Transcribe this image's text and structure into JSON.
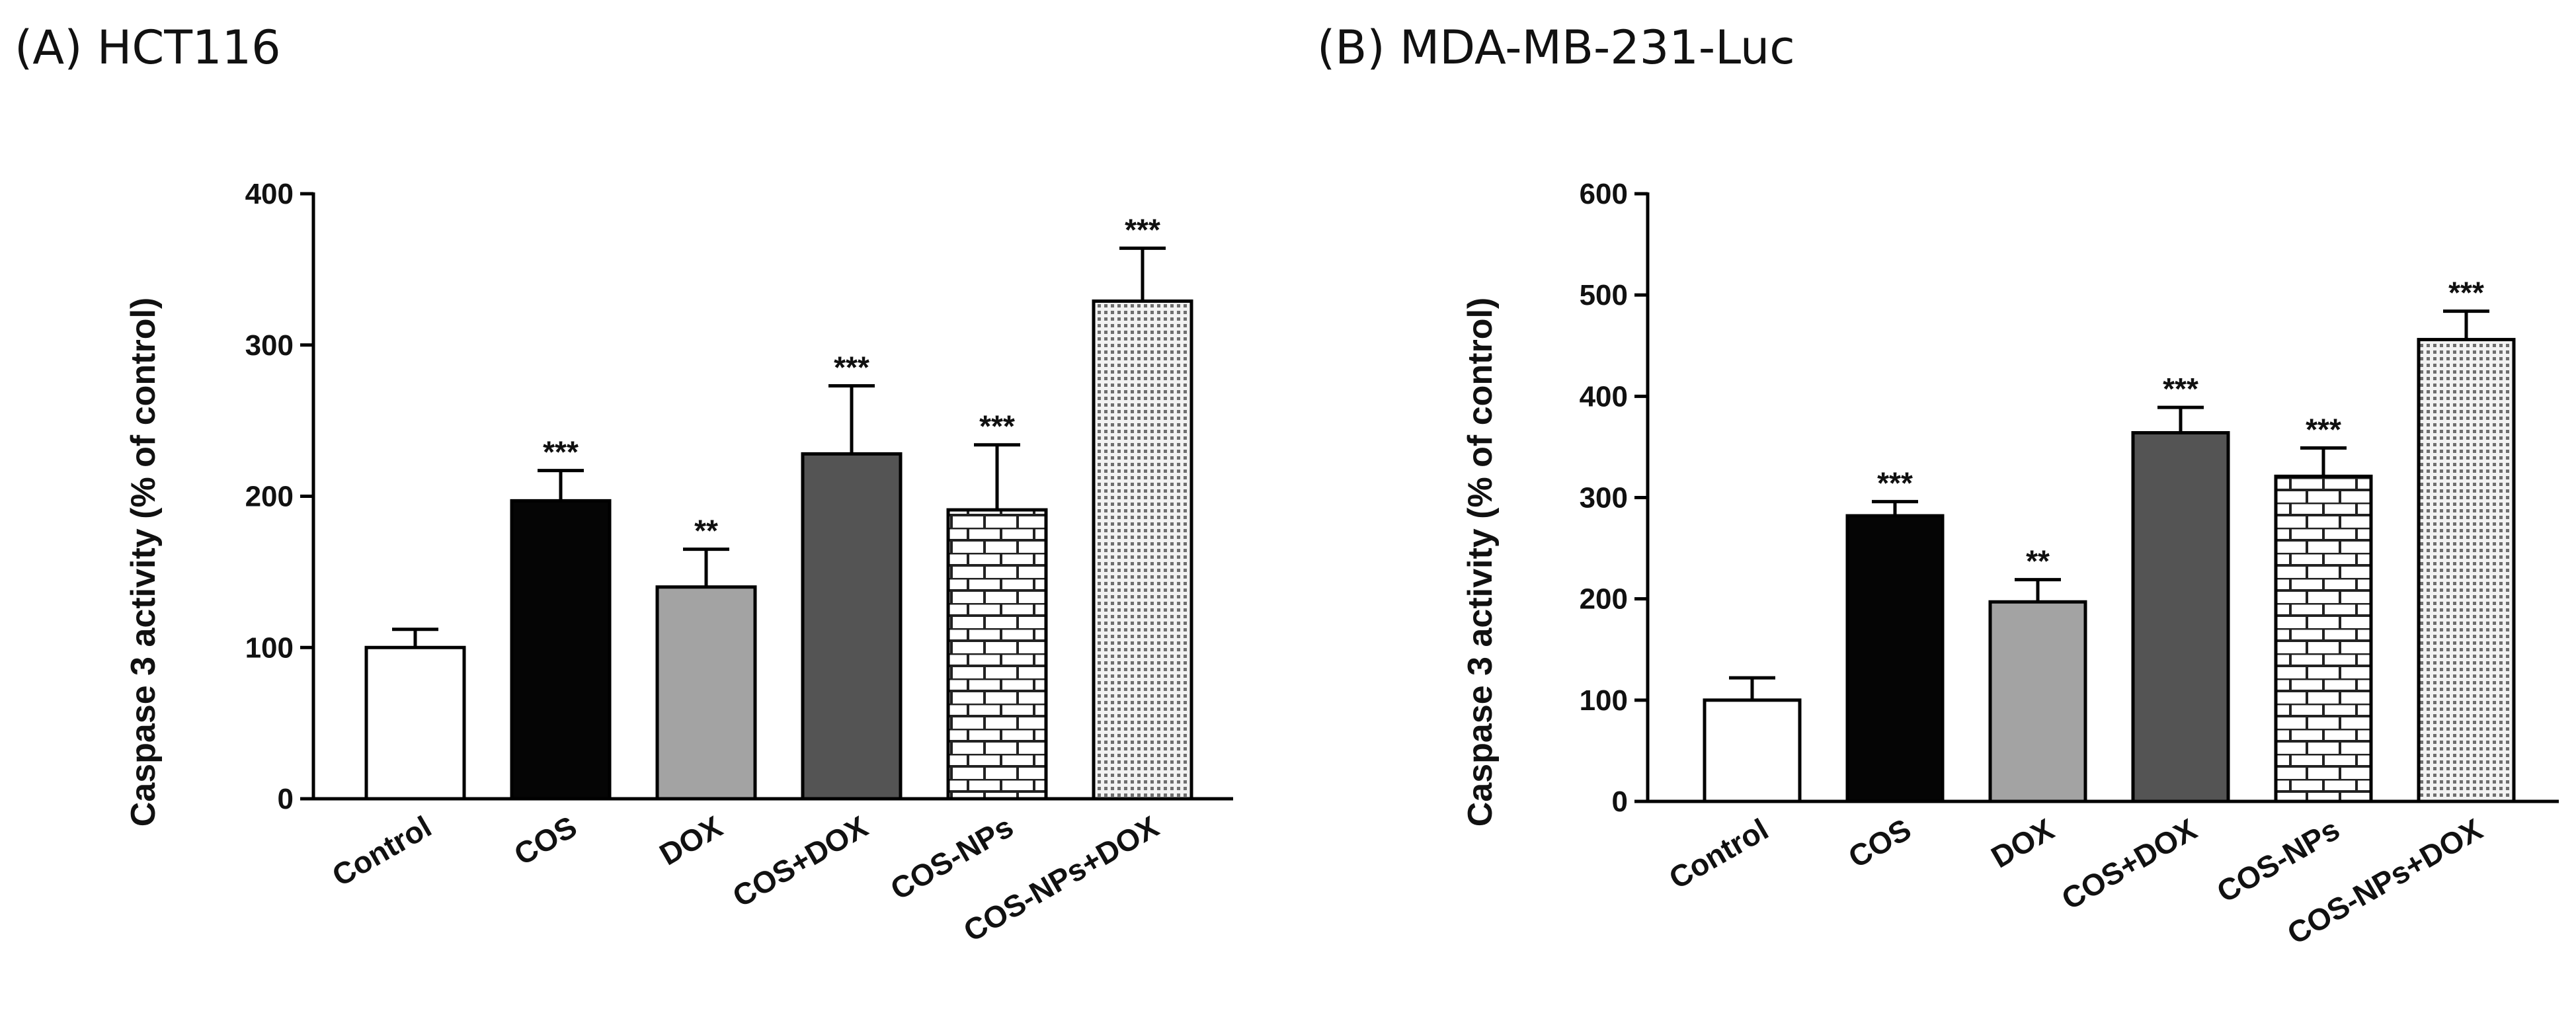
{
  "chart_data": [
    {
      "type": "bar",
      "panel_title": "(A) HCT116",
      "ylabel": "Caspase 3 activity (% of control)",
      "ylim": [
        0,
        400
      ],
      "yticks": [
        0,
        100,
        200,
        300,
        400
      ],
      "categories": [
        "Control",
        "COS",
        "DOX",
        "COS+DOX",
        "COS-NPs",
        "COS-NPs+DOX"
      ],
      "values": [
        100,
        197,
        140,
        228,
        191,
        329
      ],
      "errors": [
        12,
        20,
        25,
        45,
        43,
        35
      ],
      "significance": [
        "",
        "***",
        "**",
        "***",
        "***",
        "***"
      ],
      "fills": [
        "white",
        "black",
        "lightgray",
        "darkgray",
        "brick",
        "dots"
      ]
    },
    {
      "type": "bar",
      "panel_title": "(B) MDA-MB-231-Luc",
      "ylabel": "Caspase 3 activity (% of control)",
      "ylim": [
        0,
        600
      ],
      "yticks": [
        0,
        100,
        200,
        300,
        400,
        500,
        600
      ],
      "categories": [
        "Control",
        "COS",
        "DOX",
        "COS+DOX",
        "COS-NPs",
        "COS-NPs+DOX"
      ],
      "values": [
        100,
        282,
        197,
        364,
        321,
        456
      ],
      "errors": [
        22,
        14,
        22,
        25,
        28,
        28
      ],
      "significance": [
        "",
        "***",
        "**",
        "***",
        "***",
        "***"
      ],
      "fills": [
        "white",
        "black",
        "lightgray",
        "darkgray",
        "brick",
        "dots"
      ]
    }
  ],
  "colors": {
    "white": "#ffffff",
    "black": "#050505",
    "lightgray": "#a3a3a3",
    "darkgray": "#545454",
    "axis": "#000000"
  }
}
